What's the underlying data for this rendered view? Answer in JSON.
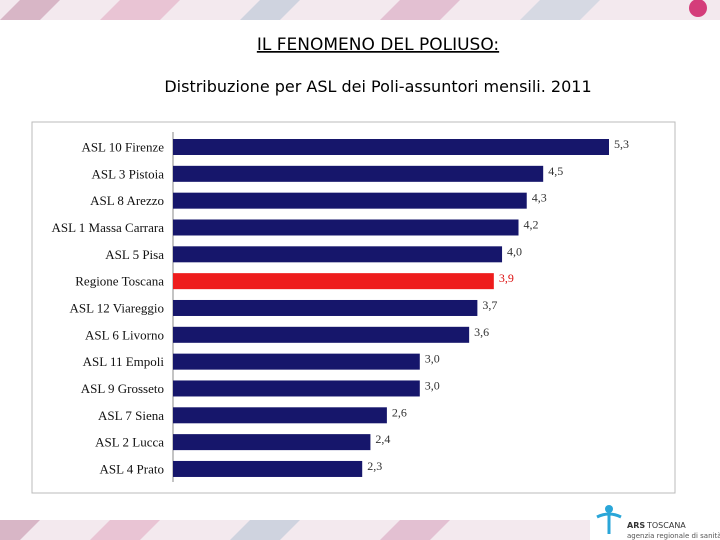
{
  "header": {
    "title": "IL FENOMENO DEL POLIUSO:",
    "subtitle": "Distribuzione per ASL dei Poli-assuntori mensili. 2011"
  },
  "logo": {
    "name": "ARS",
    "region": "TOSCANA",
    "tagline": "agenzia regionale di sanità"
  },
  "chart_data": {
    "type": "hbar",
    "categories": [
      "ASL 10 Firenze",
      "ASL 3 Pistoia",
      "ASL 8 Arezzo",
      "ASL 1 Massa Carrara",
      "ASL 5 Pisa",
      "Regione Toscana",
      "ASL 12 Viareggio",
      "ASL 6 Livorno",
      "ASL 11 Empoli",
      "ASL 9 Grosseto",
      "ASL 7 Siena",
      "ASL 2 Lucca",
      "ASL 4 Prato"
    ],
    "values": [
      5.3,
      4.5,
      4.3,
      4.2,
      4.0,
      3.9,
      3.7,
      3.6,
      3.0,
      3.0,
      2.6,
      2.4,
      2.3
    ],
    "value_labels": [
      "5,3",
      "4,5",
      "4,3",
      "4,2",
      "4,0",
      "3,9",
      "3,7",
      "3,6",
      "3,0",
      "3,0",
      "2,6",
      "2,4",
      "2,3"
    ],
    "colors": [
      "#16166b",
      "#16166b",
      "#16166b",
      "#16166b",
      "#16166b",
      "#ee1c1c",
      "#16166b",
      "#16166b",
      "#16166b",
      "#16166b",
      "#16166b",
      "#16166b",
      "#16166b"
    ],
    "value_label_colors": [
      "#333",
      "#333",
      "#333",
      "#333",
      "#333",
      "#d11",
      "#333",
      "#333",
      "#333",
      "#333",
      "#333",
      "#333",
      "#333"
    ]
  }
}
